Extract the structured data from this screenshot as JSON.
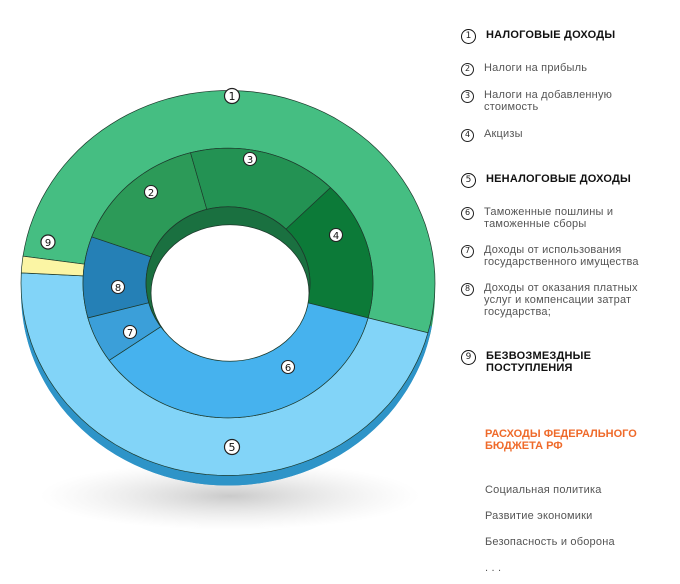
{
  "diagram": {
    "outer_ring": [
      {
        "id": "1",
        "color": "#45be82",
        "side": "#2e9a63"
      },
      {
        "id": "5",
        "color": "#82d4f8",
        "side": "#2e94c8"
      },
      {
        "id": "9",
        "color": "#fbf5a4",
        "side": "#d8cf6a"
      }
    ],
    "inner_ring": [
      {
        "id": "2",
        "color": "#2c9a58"
      },
      {
        "id": "3",
        "color": "#239253"
      },
      {
        "id": "4",
        "color": "#0c7a38"
      },
      {
        "id": "6",
        "color": "#46b2ee"
      },
      {
        "id": "7",
        "color": "#3b9fd9"
      },
      {
        "id": "8",
        "color": "#2580b6"
      }
    ]
  },
  "legend": [
    {
      "number": "1",
      "label": "Налоговые доходы",
      "main": true
    },
    {
      "number": "2",
      "label": "Налоги на прибыль",
      "main": false
    },
    {
      "number": "3",
      "label": "Налоги на добавленную стоимость",
      "main": false
    },
    {
      "number": "4",
      "label": "Акцизы",
      "main": false
    },
    {
      "number": "5",
      "label": "Неналоговые доходы",
      "main": true
    },
    {
      "number": "6",
      "label": "Таможенные пошлины и таможенные сборы",
      "main": false
    },
    {
      "number": "7",
      "label": "Доходы от использования государственного имущества",
      "main": false
    },
    {
      "number": "8",
      "label": "Доходы от оказания платных услуг и компенсации затрат государства;",
      "main": false
    },
    {
      "number": "9",
      "label": "Безвозмездные поступления",
      "main": true
    }
  ],
  "expenses": {
    "title": "Расходы федерального бюджета РФ",
    "items": [
      "Социальная политика",
      "Развитие экономики",
      "Безопасность и оборона",
      ". . ."
    ]
  }
}
